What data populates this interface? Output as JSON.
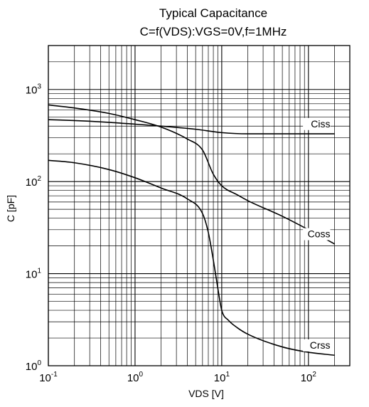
{
  "chart_data": {
    "type": "line",
    "title": "Typical Capacitance",
    "subtitle": "C=f(VDS):VGS=0V,f=1MHz",
    "xlabel": "VDS [V]",
    "ylabel": "C [pF]",
    "xscale": "log",
    "yscale": "log",
    "xlim": [
      0.1,
      300
    ],
    "ylim": [
      1,
      3000
    ],
    "grid": true,
    "x_ticks": [
      {
        "value": 0.1,
        "mantissa": "10",
        "exponent": "-1"
      },
      {
        "value": 1,
        "mantissa": "10",
        "exponent": "0"
      },
      {
        "value": 10,
        "mantissa": "10",
        "exponent": "1"
      },
      {
        "value": 100,
        "mantissa": "10",
        "exponent": "2"
      }
    ],
    "y_ticks": [
      {
        "value": 1,
        "mantissa": "10",
        "exponent": "0"
      },
      {
        "value": 10,
        "mantissa": "10",
        "exponent": "1"
      },
      {
        "value": 100,
        "mantissa": "10",
        "exponent": "2"
      },
      {
        "value": 1000,
        "mantissa": "10",
        "exponent": "3"
      }
    ],
    "series": [
      {
        "name": "Ciss",
        "x": [
          0.1,
          0.2,
          0.5,
          1,
          2,
          5,
          10,
          20,
          50,
          100,
          200
        ],
        "y": [
          470,
          460,
          440,
          420,
          400,
          370,
          340,
          330,
          330,
          330,
          330
        ]
      },
      {
        "name": "Coss",
        "x": [
          0.1,
          0.2,
          0.5,
          1,
          2,
          4,
          6,
          8,
          10,
          15,
          20,
          50,
          100,
          200
        ],
        "y": [
          680,
          630,
          550,
          470,
          390,
          290,
          220,
          120,
          90,
          72,
          62,
          42,
          30,
          21
        ]
      },
      {
        "name": "Crss",
        "x": [
          0.1,
          0.2,
          0.5,
          1,
          2,
          4,
          6,
          7,
          8,
          9,
          10,
          12,
          15,
          20,
          50,
          100,
          200
        ],
        "y": [
          170,
          160,
          135,
          110,
          85,
          65,
          45,
          28,
          14,
          7,
          4,
          3.1,
          2.6,
          2.2,
          1.6,
          1.4,
          1.3
        ]
      }
    ]
  }
}
